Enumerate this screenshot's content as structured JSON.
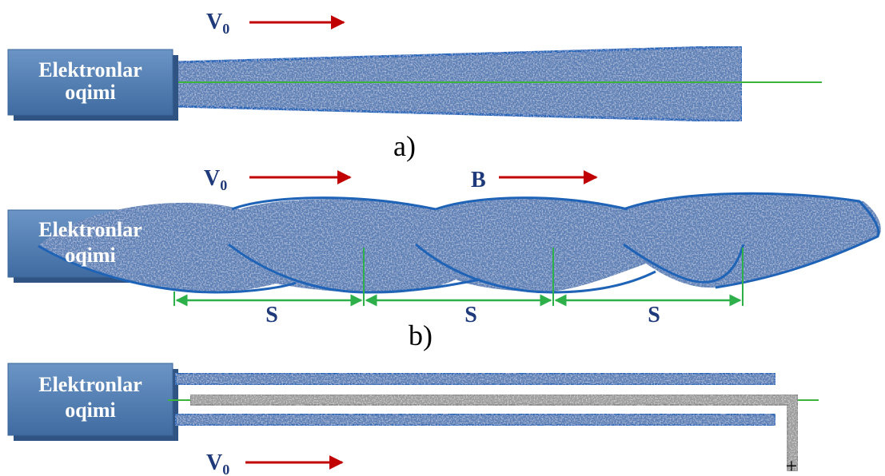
{
  "source_label": [
    "Elektronlar",
    "oqimi"
  ],
  "velocity_label": "V",
  "velocity_subscript": "0",
  "field_label": "B",
  "step_label": "S",
  "panels": {
    "a": {
      "caption": "a)"
    },
    "b": {
      "caption": "b)"
    },
    "c": {
      "plus_sign": "+"
    }
  },
  "colors": {
    "beam_fill": "#5b7fb5",
    "beam_edge": "#1f63b7",
    "source_box": "#4a77ad",
    "arrow": "#c00000",
    "axis_line": "#3cb43c",
    "dimension_line": "#2db04a",
    "label_text": "#1f3a7a",
    "electrode": "#9a9a9a"
  }
}
